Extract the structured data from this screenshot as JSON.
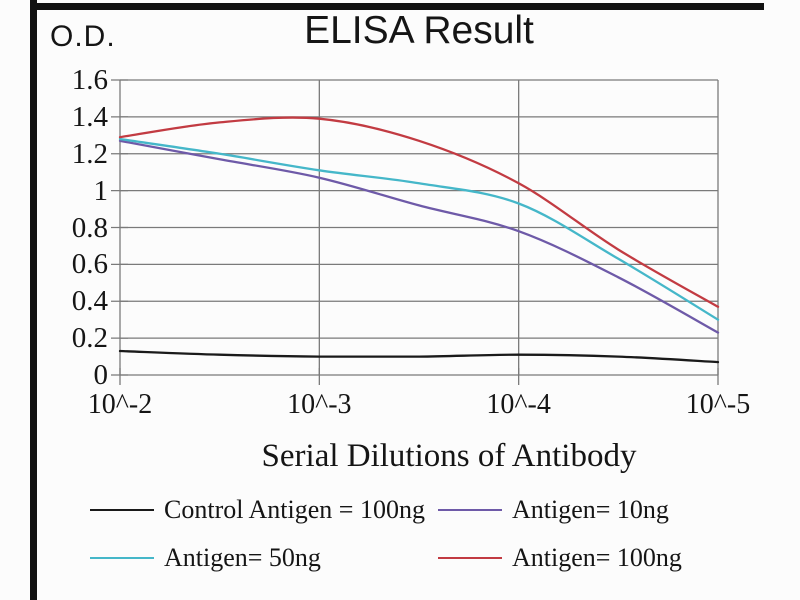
{
  "figure": {
    "title": "ELISA Result",
    "y_axis_corner_label": "O.D.",
    "x_axis_title": "Serial Dilutions of Antibody"
  },
  "chart_data": {
    "type": "line",
    "title": "ELISA Result",
    "ylabel": "O.D.",
    "xlabel": "Serial Dilutions of Antibody",
    "ylim": [
      0,
      1.6
    ],
    "grid": true,
    "legend_position": "bottom",
    "y_ticks": [
      0,
      0.2,
      0.4,
      0.6,
      0.8,
      1,
      1.2,
      1.4,
      1.6
    ],
    "y_tick_labels": [
      "0",
      "0.2",
      "0.4",
      "0.6",
      "0.8",
      "1",
      "1.2",
      "1.4",
      "1.6"
    ],
    "x_tick_values": [
      2,
      3,
      4,
      5
    ],
    "x_tick_labels": [
      "10^-2",
      "10^-3",
      "10^-4",
      "10^-5"
    ],
    "x_note": "x = -log10 of serial dilution",
    "x": [
      2,
      2.5,
      3,
      3.5,
      4,
      4.5,
      5
    ],
    "series": [
      {
        "name": "Control Antigen = 100ng",
        "color": "#1a1a1a",
        "values": [
          0.13,
          0.11,
          0.1,
          0.1,
          0.11,
          0.1,
          0.07
        ]
      },
      {
        "name": "Antigen= 10ng",
        "color": "#6e5aa8",
        "values": [
          1.27,
          1.17,
          1.07,
          0.92,
          0.78,
          0.53,
          0.23
        ]
      },
      {
        "name": "Antigen= 50ng",
        "color": "#45b7c9",
        "values": [
          1.28,
          1.2,
          1.11,
          1.04,
          0.93,
          0.63,
          0.3
        ]
      },
      {
        "name": "Antigen= 100ng",
        "color": "#c23b42",
        "values": [
          1.29,
          1.37,
          1.39,
          1.27,
          1.04,
          0.68,
          0.37
        ]
      }
    ],
    "gridline_color": "#7a7a7a"
  }
}
